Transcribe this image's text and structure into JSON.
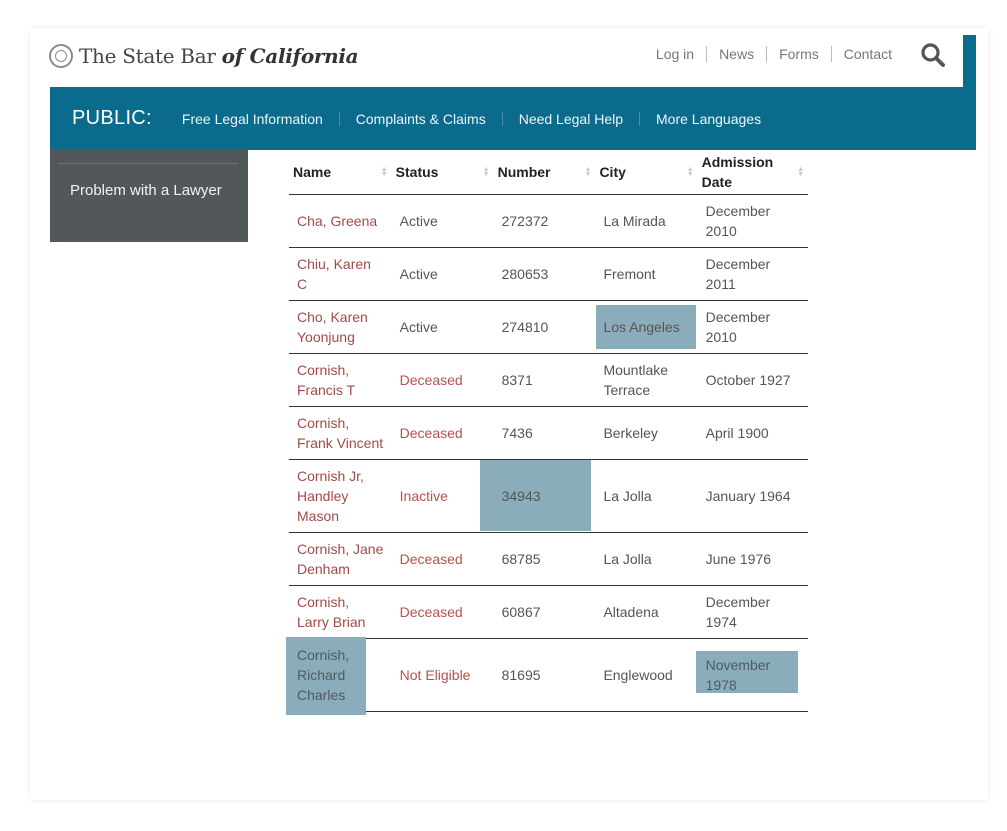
{
  "header": {
    "logo_prefix": "The State Bar ",
    "logo_of": "of ",
    "logo_name": "California",
    "util_nav": [
      "Log in",
      "News",
      "Forms",
      "Contact"
    ]
  },
  "main_nav": {
    "public_label": "PUBLIC:",
    "items": [
      "Free Legal Information",
      "Complaints & Claims",
      "Need Legal Help",
      "More Languages"
    ]
  },
  "sidebar": {
    "item": "Problem with a Lawyer"
  },
  "table": {
    "headers": [
      "Name",
      "Status",
      "Number",
      "City",
      "Admission Date"
    ],
    "rows": [
      {
        "name": "Cha, Greena",
        "status": "Active",
        "number": "272372",
        "city": "La Mirada",
        "date": "December 2010"
      },
      {
        "name": "Chiu, Karen C",
        "status": "Active",
        "number": "280653",
        "city": "Fremont",
        "date": "December 2011"
      },
      {
        "name": "Cho, Karen Yoonjung",
        "status": "Active",
        "number": "274810",
        "city": "Los Angeles",
        "date": "December 2010"
      },
      {
        "name": "Cornish, Francis T",
        "status": "Deceased",
        "number": "8371",
        "city": "Mountlake Terrace",
        "date": "October 1927"
      },
      {
        "name": "Cornish, Frank Vincent",
        "status": "Deceased",
        "number": "7436",
        "city": "Berkeley",
        "date": "April 1900"
      },
      {
        "name": "Cornish Jr, Handley Mason",
        "status": "Inactive",
        "number": "34943",
        "city": "La Jolla",
        "date": "January 1964"
      },
      {
        "name": "Cornish, Jane Denham",
        "status": "Deceased",
        "number": "68785",
        "city": "La Jolla",
        "date": "June 1976"
      },
      {
        "name": "Cornish, Larry Brian",
        "status": "Deceased",
        "number": "60867",
        "city": "Altadena",
        "date": "December 1974"
      },
      {
        "name": "Cornish, Richard Charles",
        "status": "Not Eligible",
        "number": "81695",
        "city": "Englewood",
        "date": "November 1978"
      }
    ]
  },
  "colors": {
    "nav_bg": "#0b6b8d",
    "sidebar_bg": "#52575a",
    "link": "#a24a4a",
    "highlight": "#8badbb"
  }
}
